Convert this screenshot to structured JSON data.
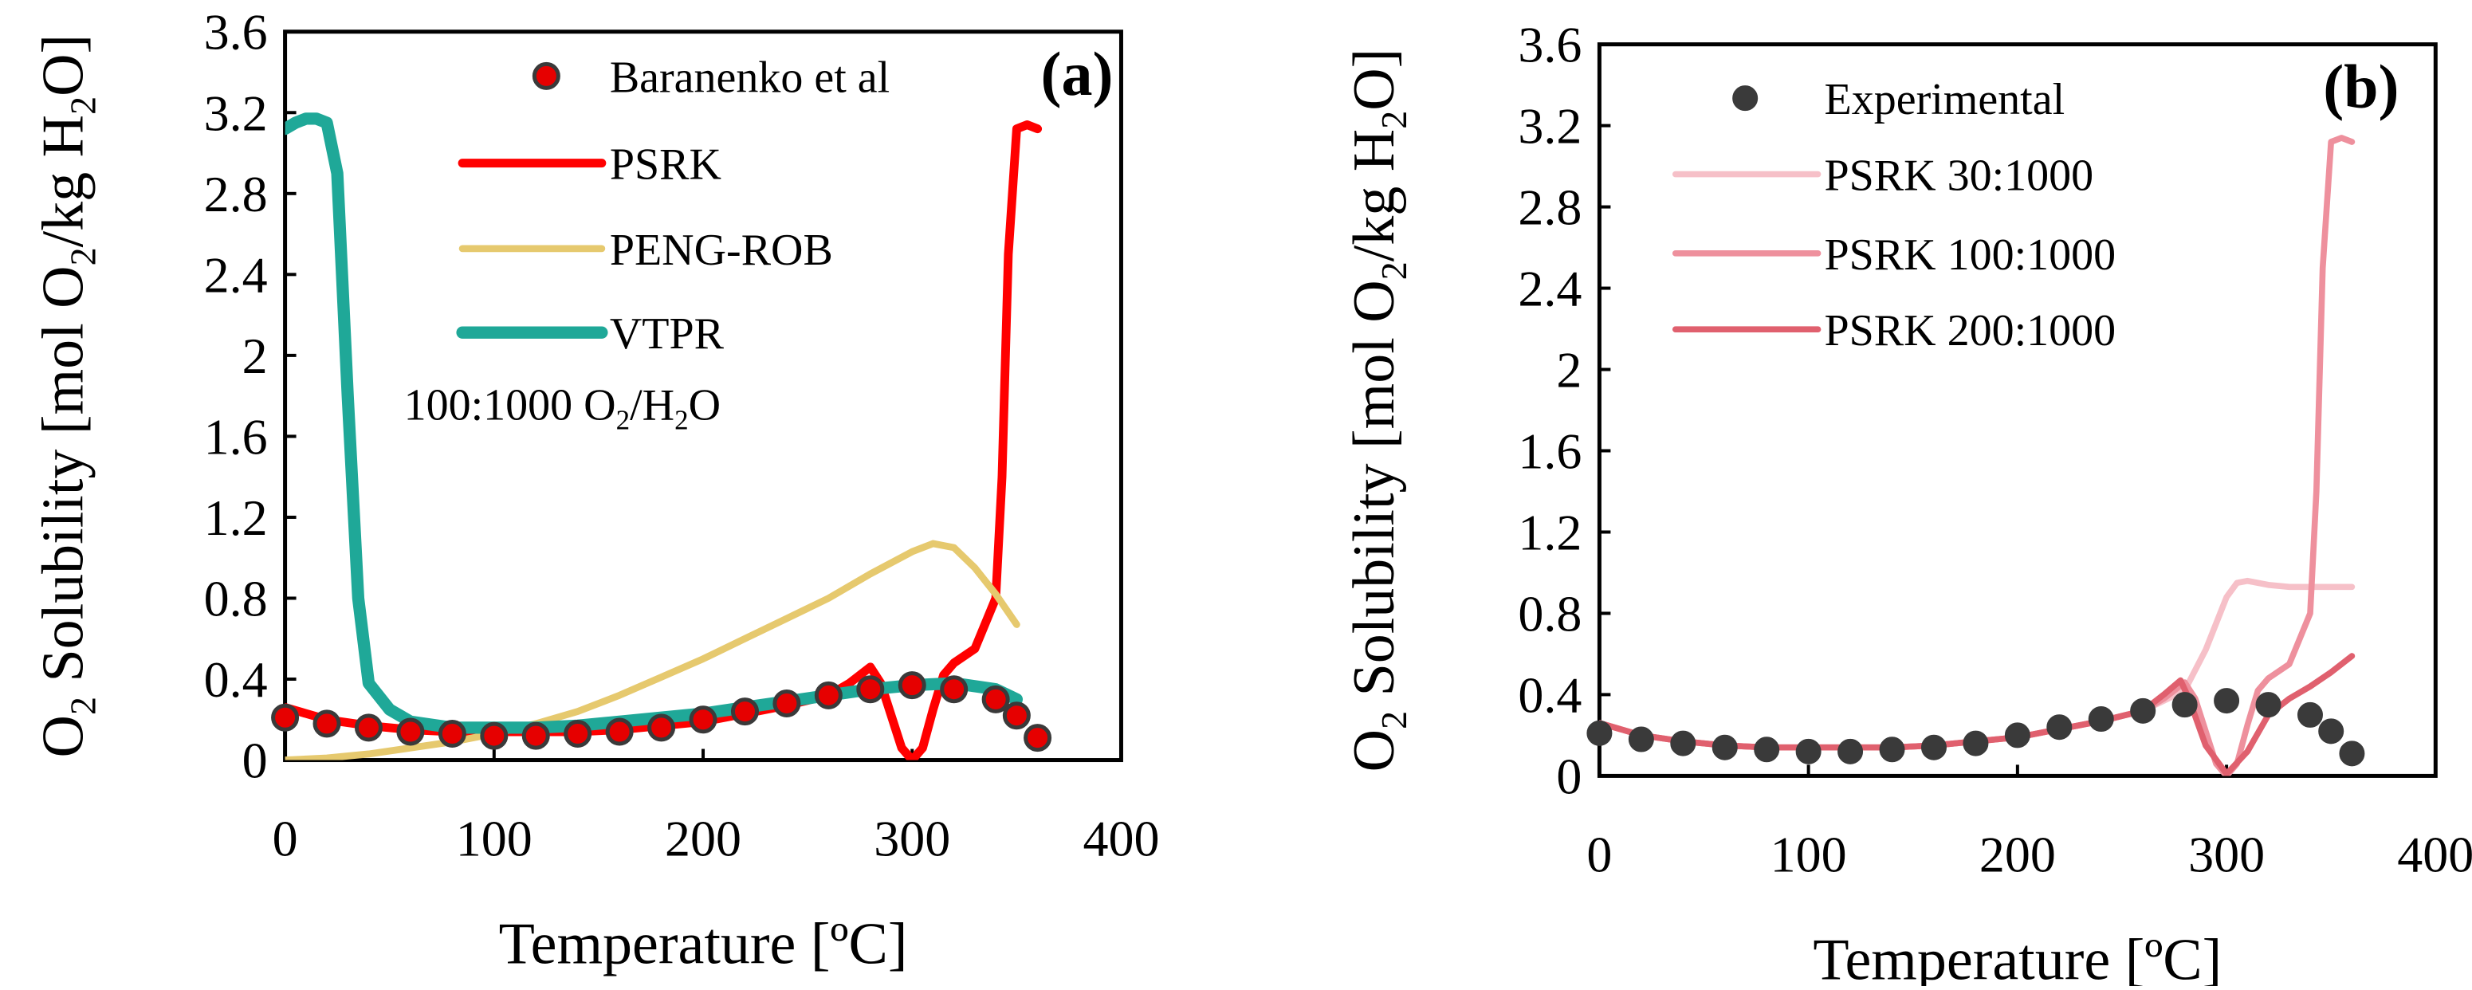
{
  "colors": {
    "psrk_a": "#ff0000",
    "peng_rob": "#e6c96e",
    "vtpr": "#1fa898",
    "marker_fill_a": "#e60000",
    "marker_edge_a": "#3a3a3a",
    "marker_b": "#3a3a3a",
    "psrk_30": "#f6c0c8",
    "psrk_100": "#ee909d",
    "psrk_200": "#e0606e"
  },
  "chart_data": [
    {
      "type": "line",
      "panel_label": "(a)",
      "xlabel": "Temperature [ºC]",
      "ylabel_parts": [
        "O",
        "2",
        " Solubility [mol O",
        "2",
        "/kg H",
        "2",
        "O]"
      ],
      "xlim": [
        0,
        400
      ],
      "ylim": [
        0,
        3.6
      ],
      "x_ticks": [
        0,
        100,
        200,
        300,
        400
      ],
      "y_ticks": [
        0,
        0.4,
        0.8,
        1.2,
        1.6,
        2,
        2.4,
        2.8,
        3.2,
        3.6
      ],
      "x_tick_labels": [
        "0",
        "100",
        "200",
        "300",
        "400"
      ],
      "y_tick_labels": [
        "0",
        "0.4",
        "0.8",
        "1.2",
        "1.6",
        "2",
        "2.4",
        "2.8",
        "3.2",
        "3.6"
      ],
      "annotation_parts": [
        "100:1000 O",
        "2",
        "/H",
        "2",
        "O"
      ],
      "legend": [
        {
          "label": "Baranenko et al",
          "kind": "marker"
        },
        {
          "label": "PSRK",
          "kind": "line"
        },
        {
          "label": "PENG-ROB",
          "kind": "line"
        },
        {
          "label": "VTPR",
          "kind": "line"
        }
      ],
      "series": [
        {
          "name": "Baranenko et al",
          "kind": "scatter",
          "x": [
            0,
            20,
            40,
            60,
            80,
            100,
            120,
            140,
            160,
            180,
            200,
            220,
            240,
            260,
            280,
            300,
            320,
            340,
            350,
            360
          ],
          "y": [
            0.21,
            0.18,
            0.16,
            0.14,
            0.13,
            0.12,
            0.12,
            0.13,
            0.14,
            0.16,
            0.2,
            0.24,
            0.28,
            0.32,
            0.35,
            0.37,
            0.35,
            0.3,
            0.22,
            0.11
          ]
        },
        {
          "name": "PSRK",
          "kind": "line",
          "x": [
            0,
            20,
            40,
            60,
            80,
            100,
            120,
            140,
            160,
            180,
            200,
            220,
            240,
            260,
            270,
            280,
            285,
            290,
            295,
            300,
            305,
            310,
            315,
            320,
            330,
            340,
            343,
            346,
            350,
            355,
            360
          ],
          "y": [
            0.26,
            0.2,
            0.17,
            0.15,
            0.14,
            0.14,
            0.14,
            0.14,
            0.15,
            0.17,
            0.19,
            0.23,
            0.27,
            0.32,
            0.38,
            0.46,
            0.38,
            0.22,
            0.06,
            0.0,
            0.06,
            0.25,
            0.42,
            0.48,
            0.55,
            0.8,
            1.4,
            2.5,
            3.12,
            3.14,
            3.12
          ]
        },
        {
          "name": "PENG-ROB",
          "kind": "line",
          "x": [
            0,
            20,
            40,
            60,
            80,
            100,
            120,
            140,
            160,
            180,
            200,
            220,
            240,
            260,
            280,
            300,
            310,
            320,
            330,
            340,
            350
          ],
          "y": [
            0.0,
            0.01,
            0.03,
            0.06,
            0.09,
            0.13,
            0.18,
            0.24,
            0.32,
            0.41,
            0.5,
            0.6,
            0.7,
            0.8,
            0.92,
            1.03,
            1.07,
            1.05,
            0.95,
            0.82,
            0.67
          ]
        },
        {
          "name": "VTPR",
          "kind": "line",
          "x": [
            0,
            5,
            10,
            15,
            20,
            25,
            30,
            35,
            40,
            50,
            60,
            80,
            100,
            120,
            140,
            160,
            180,
            200,
            220,
            240,
            260,
            280,
            300,
            320,
            340,
            350
          ],
          "y": [
            3.12,
            3.15,
            3.17,
            3.17,
            3.15,
            2.9,
            1.8,
            0.8,
            0.38,
            0.25,
            0.19,
            0.16,
            0.16,
            0.16,
            0.17,
            0.19,
            0.21,
            0.23,
            0.26,
            0.29,
            0.32,
            0.35,
            0.37,
            0.38,
            0.35,
            0.3
          ]
        }
      ]
    },
    {
      "type": "line",
      "panel_label": "(b)",
      "xlabel": "Temperature [ºC]",
      "ylabel_parts": [
        "O",
        "2",
        " Solubility [mol O",
        "2",
        "/kg H",
        "2",
        "O]"
      ],
      "xlim": [
        0,
        400
      ],
      "ylim": [
        0,
        3.6
      ],
      "x_ticks": [
        0,
        100,
        200,
        300,
        400
      ],
      "y_ticks": [
        0,
        0.4,
        0.8,
        1.2,
        1.6,
        2,
        2.4,
        2.8,
        3.2,
        3.6
      ],
      "x_tick_labels": [
        "0",
        "100",
        "200",
        "300",
        "400"
      ],
      "y_tick_labels": [
        "0",
        "0.4",
        "0.8",
        "1.2",
        "1.6",
        "2",
        "2.4",
        "2.8",
        "3.2",
        "3.6"
      ],
      "legend": [
        {
          "label": "Experimental",
          "kind": "marker"
        },
        {
          "label": "PSRK 30:1000",
          "kind": "line"
        },
        {
          "label": "PSRK 100:1000",
          "kind": "line"
        },
        {
          "label": "PSRK 200:1000",
          "kind": "line"
        }
      ],
      "series": [
        {
          "name": "Experimental",
          "kind": "scatter",
          "x": [
            0,
            20,
            40,
            60,
            80,
            100,
            120,
            140,
            160,
            180,
            200,
            220,
            240,
            260,
            280,
            300,
            320,
            340,
            350,
            360
          ],
          "y": [
            0.21,
            0.18,
            0.16,
            0.14,
            0.13,
            0.12,
            0.12,
            0.13,
            0.14,
            0.16,
            0.2,
            0.24,
            0.28,
            0.32,
            0.35,
            0.37,
            0.35,
            0.3,
            0.22,
            0.11
          ]
        },
        {
          "name": "PSRK 30:1000",
          "kind": "line",
          "x": [
            0,
            20,
            40,
            60,
            80,
            100,
            120,
            140,
            160,
            180,
            200,
            220,
            240,
            260,
            280,
            290,
            300,
            305,
            310,
            320,
            330,
            340,
            350,
            360
          ],
          "y": [
            0.26,
            0.2,
            0.17,
            0.15,
            0.14,
            0.14,
            0.14,
            0.14,
            0.15,
            0.17,
            0.19,
            0.23,
            0.27,
            0.32,
            0.42,
            0.62,
            0.88,
            0.95,
            0.96,
            0.94,
            0.93,
            0.93,
            0.93,
            0.93
          ]
        },
        {
          "name": "PSRK 100:1000",
          "kind": "line",
          "x": [
            0,
            20,
            40,
            60,
            80,
            100,
            120,
            140,
            160,
            180,
            200,
            220,
            240,
            260,
            270,
            280,
            285,
            290,
            295,
            300,
            305,
            310,
            315,
            320,
            330,
            340,
            343,
            346,
            350,
            355,
            360
          ],
          "y": [
            0.26,
            0.2,
            0.17,
            0.15,
            0.14,
            0.14,
            0.14,
            0.14,
            0.15,
            0.17,
            0.19,
            0.23,
            0.27,
            0.32,
            0.38,
            0.46,
            0.38,
            0.22,
            0.06,
            0.0,
            0.06,
            0.25,
            0.42,
            0.48,
            0.55,
            0.8,
            1.4,
            2.5,
            3.12,
            3.14,
            3.12
          ]
        },
        {
          "name": "PSRK 200:1000",
          "kind": "line",
          "x": [
            0,
            20,
            40,
            60,
            80,
            100,
            120,
            140,
            160,
            180,
            200,
            220,
            240,
            260,
            270,
            278,
            282,
            290,
            300,
            310,
            320,
            330,
            340,
            350,
            360
          ],
          "y": [
            0.26,
            0.2,
            0.17,
            0.15,
            0.14,
            0.14,
            0.14,
            0.14,
            0.15,
            0.17,
            0.19,
            0.23,
            0.27,
            0.32,
            0.4,
            0.47,
            0.38,
            0.15,
            0.01,
            0.12,
            0.3,
            0.38,
            0.44,
            0.51,
            0.59
          ]
        }
      ]
    }
  ]
}
